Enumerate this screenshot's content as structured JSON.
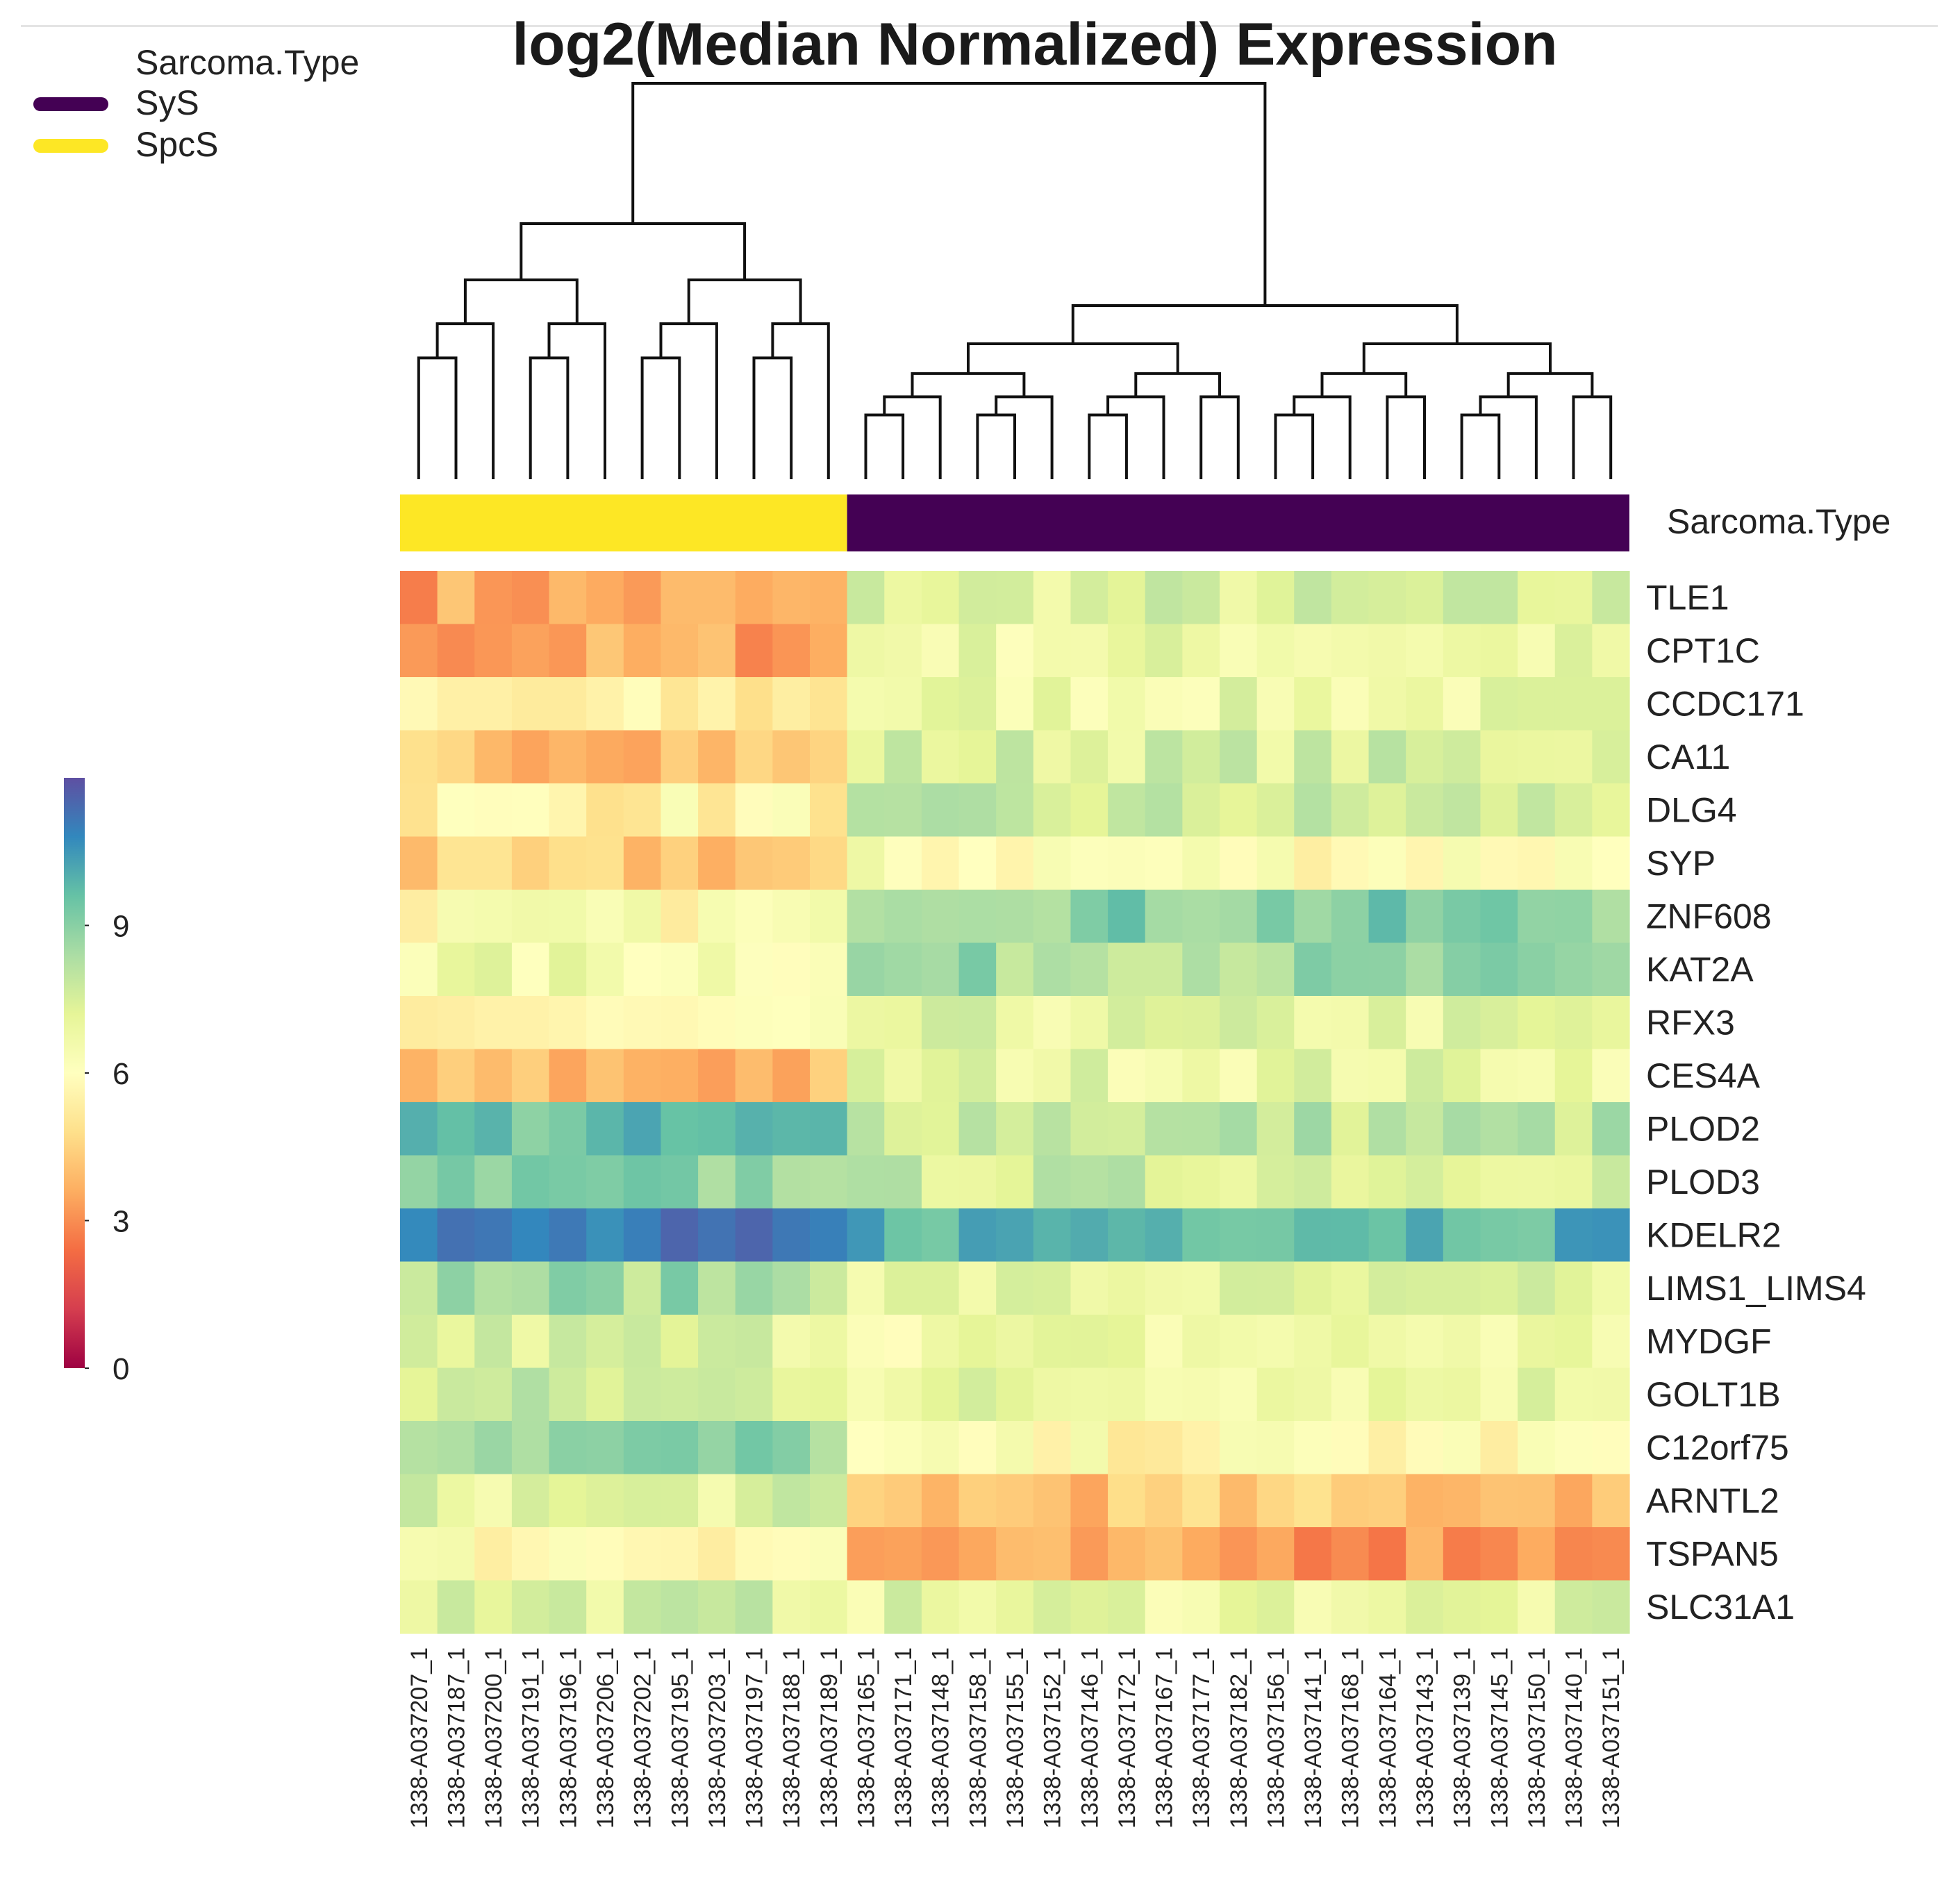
{
  "title": "log2(Median Normalized) Expression",
  "legend": {
    "title": "Sarcoma.Type",
    "items": [
      {
        "label": "SyS",
        "color": "#440154"
      },
      {
        "label": "SpcS",
        "color": "#fde725"
      }
    ]
  },
  "annotation_label": "Sarcoma.Type",
  "chart_data": {
    "type": "heatmap",
    "title": "log2(Median Normalized) Expression",
    "color_scale": {
      "ticks": [
        0,
        3,
        6,
        9
      ],
      "range": [
        0,
        12
      ],
      "palette": [
        "#9e0142",
        "#d53e4f",
        "#f46d43",
        "#fdae61",
        "#fee08b",
        "#ffffbf",
        "#e6f598",
        "#abdda4",
        "#66c2a5",
        "#3288bd",
        "#5e4fa2"
      ]
    },
    "genes": [
      "TLE1",
      "CPT1C",
      "CCDC171",
      "CA11",
      "DLG4",
      "SYP",
      "ZNF608",
      "KAT2A",
      "RFX3",
      "CES4A",
      "PLOD2",
      "PLOD3",
      "KDELR2",
      "LIMS1_LIMS4",
      "MYDGF",
      "GOLT1B",
      "C12orf75",
      "ARNTL2",
      "TSPAN5",
      "SLC31A1"
    ],
    "samples": [
      "1338-A037207_1",
      "1338-A037187_1",
      "1338-A037200_1",
      "1338-A037191_1",
      "1338-A037196_1",
      "1338-A037206_1",
      "1338-A037202_1",
      "1338-A037195_1",
      "1338-A037203_1",
      "1338-A037197_1",
      "1338-A037188_1",
      "1338-A037189_1",
      "1338-A037165_1",
      "1338-A037171_1",
      "1338-A037148_1",
      "1338-A037158_1",
      "1338-A037155_1",
      "1338-A037152_1",
      "1338-A037146_1",
      "1338-A037172_1",
      "1338-A037167_1",
      "1338-A037177_1",
      "1338-A037182_1",
      "1338-A037156_1",
      "1338-A037141_1",
      "1338-A037168_1",
      "1338-A037164_1",
      "1338-A037143_1",
      "1338-A037139_1",
      "1338-A037145_1",
      "1338-A037150_1",
      "1338-A037140_1",
      "1338-A037151_1"
    ],
    "groups": {
      "SpcS": 12,
      "SyS": 21
    },
    "group_means": {
      "SpcS": [
        3.5,
        3.5,
        5.2,
        4.2,
        5.6,
        4.2,
        6.0,
        6.6,
        5.5,
        3.8,
        9.5,
        8.8,
        10.8,
        8.5,
        7.3,
        7.6,
        8.8,
        7.2,
        6.0,
        7.4
      ],
      "SyS": [
        7.3,
        6.8,
        6.8,
        7.4,
        7.6,
        6.1,
        9.0,
        8.5,
        7.0,
        7.0,
        8.0,
        7.6,
        10.0,
        7.0,
        6.7,
        7.0,
        5.8,
        4.2,
        3.3,
        7.0
      ]
    }
  }
}
